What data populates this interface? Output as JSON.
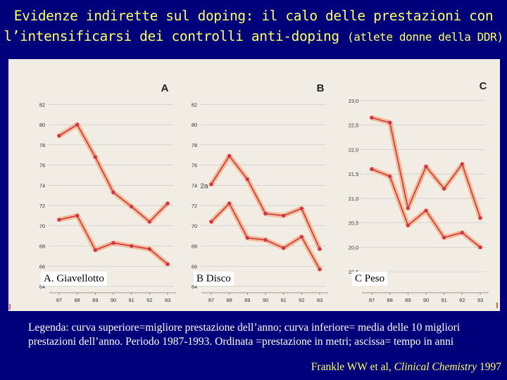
{
  "title": {
    "line1": "Evidenze indirette sul doping: il calo delle prestazioni con",
    "line2_main": "l’intensificarsi dei controlli anti-doping",
    "line2_small": "(atlete donne della DDR)"
  },
  "legend": "Legenda: curva superiore=migliore prestazione dell’anno; curva inferiore= media delle 10 migliori prestazioni dell’anno. Periodo 1987-1993. Ordinata =prestazione in metri; ascissa= tempo in anni",
  "citation": {
    "authors": "Frankle WW et al,",
    "journal": "Clinical Chemistry",
    "year": "1997"
  },
  "colors": {
    "background": "#00007a",
    "title": "#ffff66",
    "figure_bg": "#f1ede4",
    "line": "#d1314f",
    "halo": "#f2b582",
    "grid": "#bdbdbd"
  },
  "chart_data": [
    {
      "type": "line",
      "panel": "A",
      "caption": "A. Giavellotto",
      "x": [
        "87",
        "88",
        "89",
        "90",
        "91",
        "92",
        "93"
      ],
      "yticks": [
        64,
        66,
        68,
        70,
        72,
        74,
        76,
        78,
        80,
        82
      ],
      "ylim": [
        64,
        83
      ],
      "series": [
        {
          "name": "migliore prestazione",
          "values": [
            78.9,
            80.0,
            76.8,
            73.3,
            71.9,
            70.4,
            72.2
          ]
        },
        {
          "name": "media 10 migliori",
          "values": [
            70.6,
            71.0,
            67.6,
            68.3,
            68.0,
            67.7,
            66.2
          ]
        }
      ]
    },
    {
      "type": "line",
      "panel": "B",
      "caption": "B Disco",
      "annotation": "2a",
      "x": [
        "87",
        "88",
        "89",
        "90",
        "91",
        "92",
        "93"
      ],
      "yticks": [
        64,
        66,
        68,
        70,
        72,
        74,
        76,
        78,
        80,
        82
      ],
      "ylim": [
        64,
        83
      ],
      "series": [
        {
          "name": "migliore prestazione",
          "values": [
            74.1,
            76.9,
            74.6,
            71.2,
            71.0,
            71.7,
            67.7
          ]
        },
        {
          "name": "media 10 migliori",
          "values": [
            70.4,
            72.2,
            68.8,
            68.6,
            67.8,
            68.9,
            65.7
          ]
        }
      ]
    },
    {
      "type": "line",
      "panel": "C",
      "caption": "C Peso",
      "x": [
        "87",
        "88",
        "89",
        "90",
        "91",
        "92",
        "93"
      ],
      "yticks": [
        19.5,
        20.0,
        20.5,
        21.0,
        21.5,
        22.0,
        22.5,
        23.0
      ],
      "ytick_labels": [
        "19,5",
        "20,0",
        "20,5",
        "21,0",
        "21,5",
        "22,0",
        "22,5",
        "23,0"
      ],
      "ylim": [
        19.2,
        23.1
      ],
      "series": [
        {
          "name": "migliore prestazione",
          "values": [
            22.65,
            22.55,
            20.8,
            21.65,
            21.2,
            21.7,
            20.6
          ]
        },
        {
          "name": "media 10 migliori",
          "values": [
            21.6,
            21.45,
            20.45,
            20.75,
            20.2,
            20.3,
            20.0
          ]
        }
      ]
    }
  ]
}
